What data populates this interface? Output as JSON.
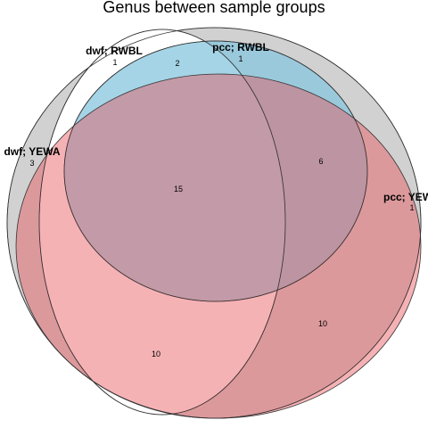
{
  "title": "Genus between sample groups",
  "sets": [
    {
      "key": "grey",
      "label": "dwf; YEWA",
      "color": "#bdbdbd"
    },
    {
      "key": "white",
      "label": "dwf; RWBL",
      "color": "#ffffff"
    },
    {
      "key": "blue",
      "label": "pcc; RWBL",
      "color": "#87c5dd"
    },
    {
      "key": "red",
      "label": "pcc; YEWA",
      "color": "#e8545c"
    }
  ],
  "counts": {
    "grey_only": "3",
    "white_only": "1",
    "white_blue": "2",
    "blue_only": "1",
    "red_only": "1",
    "blue_red": "6",
    "center": "15",
    "bottom_left": "10",
    "bottom_right": "10"
  }
}
